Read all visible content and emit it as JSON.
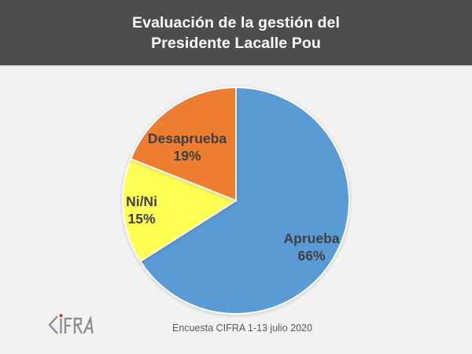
{
  "header": {
    "title_line1": "Evaluación de la gestión del",
    "title_line2": "Presidente Lacalle Pou"
  },
  "chart_data": {
    "type": "pie",
    "title": "Evaluación de la gestión del Presidente Lacalle Pou",
    "direction": "clockwise",
    "start_angle": "12-oclock",
    "label_format": "name and percent inside slice",
    "slices": [
      {
        "label": "Aprueba",
        "value": 66,
        "pct": "66%",
        "color": "#5B9BD5"
      },
      {
        "label": "Ni/Ni",
        "value": 15,
        "pct": "15%",
        "color": "#FFFF54"
      },
      {
        "label": "Desaprueba",
        "value": 19,
        "pct": "19%",
        "color": "#ED7D31"
      }
    ]
  },
  "footer": {
    "caption": "Encuesta CIFRA 1-13 julio 2020",
    "logo_name": "CIFRA"
  },
  "colors": {
    "header_bg": "#4D4D4D",
    "page_bg": "#F2F2F2",
    "label_text": "#3F3F3F",
    "caption_text": "#595959",
    "logo_gray": "#8A8A8A",
    "logo_dot_red": "#D92121"
  }
}
